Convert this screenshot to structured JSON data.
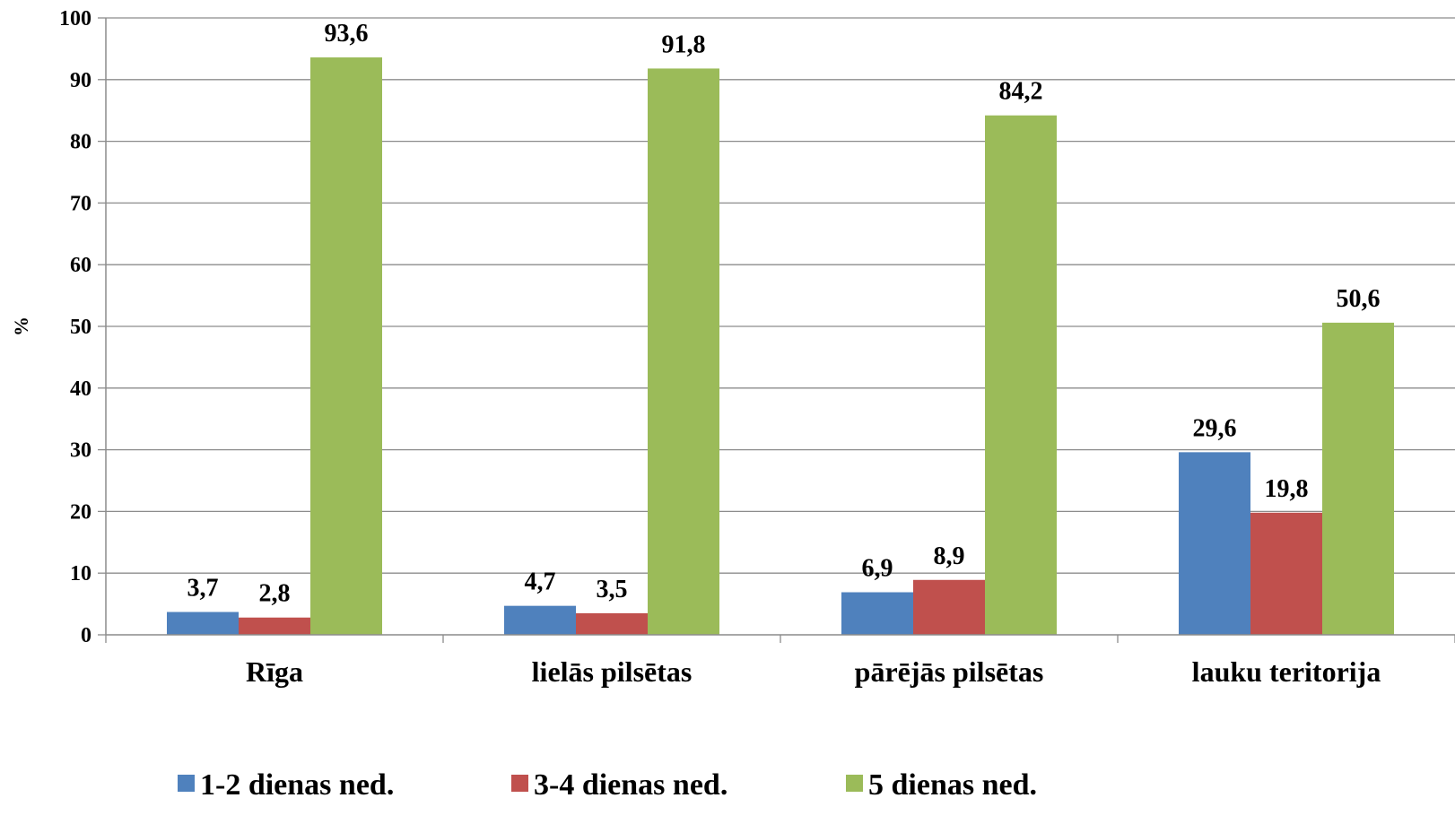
{
  "chart_data": {
    "type": "bar",
    "ylabel": "%",
    "ylim": [
      0,
      100
    ],
    "yticks": [
      0,
      10,
      20,
      30,
      40,
      50,
      60,
      70,
      80,
      90,
      100
    ],
    "grid": true,
    "legend_position": "bottom",
    "categories": [
      "Rīga",
      "lielās pilsētas",
      "pārējās pilsētas",
      "lauku teritorija"
    ],
    "series": [
      {
        "name": "1-2 dienas ned.",
        "color": "#4F81BD",
        "values": [
          3.7,
          4.7,
          6.9,
          29.6
        ],
        "labels": [
          "3,7",
          "4,7",
          "6,9",
          "29,6"
        ]
      },
      {
        "name": "3-4 dienas ned.",
        "color": "#C0504D",
        "values": [
          2.8,
          3.5,
          8.9,
          19.8
        ],
        "labels": [
          "2,8",
          "3,5",
          "8,9",
          "19,8"
        ]
      },
      {
        "name": "5 dienas ned.",
        "color": "#9BBB59",
        "values": [
          93.6,
          91.8,
          84.2,
          50.6
        ],
        "labels": [
          "93,6",
          "91,8",
          "84,2",
          "50,6"
        ]
      }
    ]
  }
}
